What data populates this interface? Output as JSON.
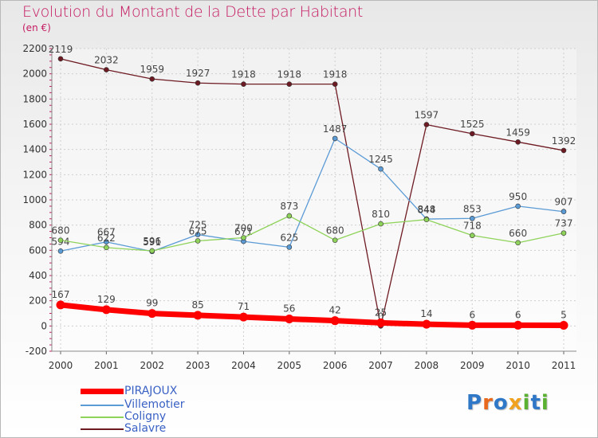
{
  "title": "Evolution du Montant de la Dette par Habitant",
  "unit_label": "(en €)",
  "chart_data": {
    "type": "line",
    "x": [
      "2000",
      "2001",
      "2002",
      "2003",
      "2004",
      "2005",
      "2006",
      "2007",
      "2008",
      "2009",
      "2010",
      "2011"
    ],
    "ylim": [
      -200,
      2200
    ],
    "yticks": [
      -200,
      0,
      200,
      400,
      600,
      800,
      1000,
      1200,
      1400,
      1600,
      1800,
      2000,
      2200
    ],
    "grid": true,
    "legend_position": "bottom-left",
    "series": [
      {
        "name": "Salavre",
        "color": "#6e1a22",
        "values": [
          2119,
          2032,
          1959,
          1927,
          1918,
          1918,
          1918,
          0,
          1597,
          1525,
          1459,
          1392
        ]
      },
      {
        "name": "Villemotier",
        "color": "#5b9bd5",
        "values": [
          594,
          667,
          591,
          725,
          671,
          625,
          1487,
          1245,
          848,
          853,
          950,
          907
        ]
      },
      {
        "name": "Coligny",
        "color": "#8fd35a",
        "values": [
          680,
          622,
          596,
          675,
          700,
          873,
          680,
          810,
          844,
          718,
          660,
          737
        ]
      },
      {
        "name": "PIRAJOUX",
        "color": "#ff0000",
        "values": [
          167,
          129,
          99,
          85,
          71,
          56,
          42,
          25,
          14,
          6,
          6,
          5
        ]
      }
    ]
  },
  "legend": [
    {
      "name": "PIRAJOUX",
      "color": "#ff0000"
    },
    {
      "name": "Villemotier",
      "color": "#5b9bd5"
    },
    {
      "name": "Coligny",
      "color": "#8fd35a"
    },
    {
      "name": "Salavre",
      "color": "#6e1a22"
    }
  ],
  "logo": {
    "letters": [
      "P",
      "r",
      "o",
      "x",
      "i",
      "t",
      "i"
    ],
    "colors": [
      "#2f78c8",
      "#e8681c",
      "#2f78c8",
      "#f0a21e",
      "#5ab031",
      "#2f78c8",
      "#5ab031"
    ]
  }
}
